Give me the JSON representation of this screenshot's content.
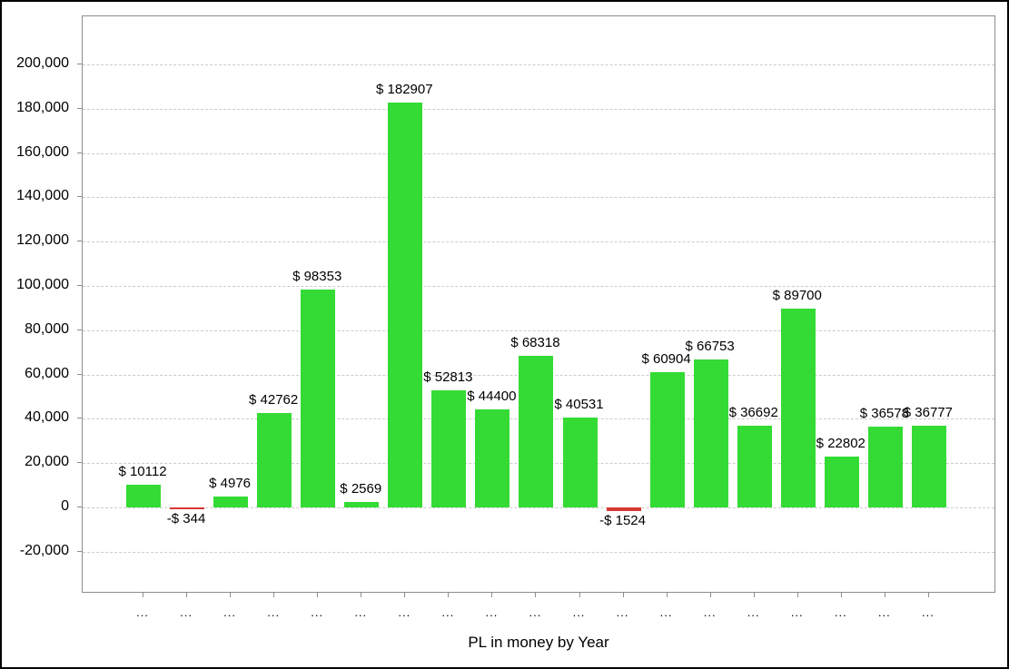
{
  "chart_data": {
    "type": "bar",
    "title": "",
    "xlabel": "PL in money by Year",
    "ylabel": "",
    "categories": [
      "...",
      "...",
      "...",
      "...",
      "...",
      "...",
      "...",
      "...",
      "...",
      "...",
      "...",
      "...",
      "...",
      "...",
      "...",
      "...",
      "...",
      "...",
      "..."
    ],
    "values": [
      10112,
      -344,
      4976,
      42762,
      98353,
      2569,
      182907,
      52813,
      44400,
      68318,
      40531,
      -1524,
      60904,
      66753,
      36692,
      89700,
      22802,
      36578,
      36777
    ],
    "bar_labels": [
      "$ 10112",
      "-$ 344",
      "$ 4976",
      "$ 42762",
      "$ 98353",
      "$ 2569",
      "$ 182907",
      "$ 52813",
      "$ 44400",
      "$ 68318",
      "$ 40531",
      "-$ 1524",
      "$ 60904",
      "$ 66753",
      "$ 36692",
      "$ 89700",
      "$ 22802",
      "$ 36578",
      "$ 36777"
    ],
    "yticks": [
      -20000,
      0,
      20000,
      40000,
      60000,
      80000,
      100000,
      120000,
      140000,
      160000,
      180000,
      200000
    ],
    "ytick_labels": [
      "-20,000",
      "0",
      "20,000",
      "40,000",
      "60,000",
      "80,000",
      "100,000",
      "120,000",
      "140,000",
      "160,000",
      "180,000",
      "200,000"
    ],
    "ylim": [
      -38900,
      221700
    ],
    "grid": "horizontal-dashed",
    "legend": "none",
    "colors": {
      "positive_bar": "#34db34",
      "negative_bar": "#d63931",
      "grid": "#cccccc",
      "axis": "#8c8c8c",
      "text": "#000000",
      "background": "#ffffff"
    }
  }
}
